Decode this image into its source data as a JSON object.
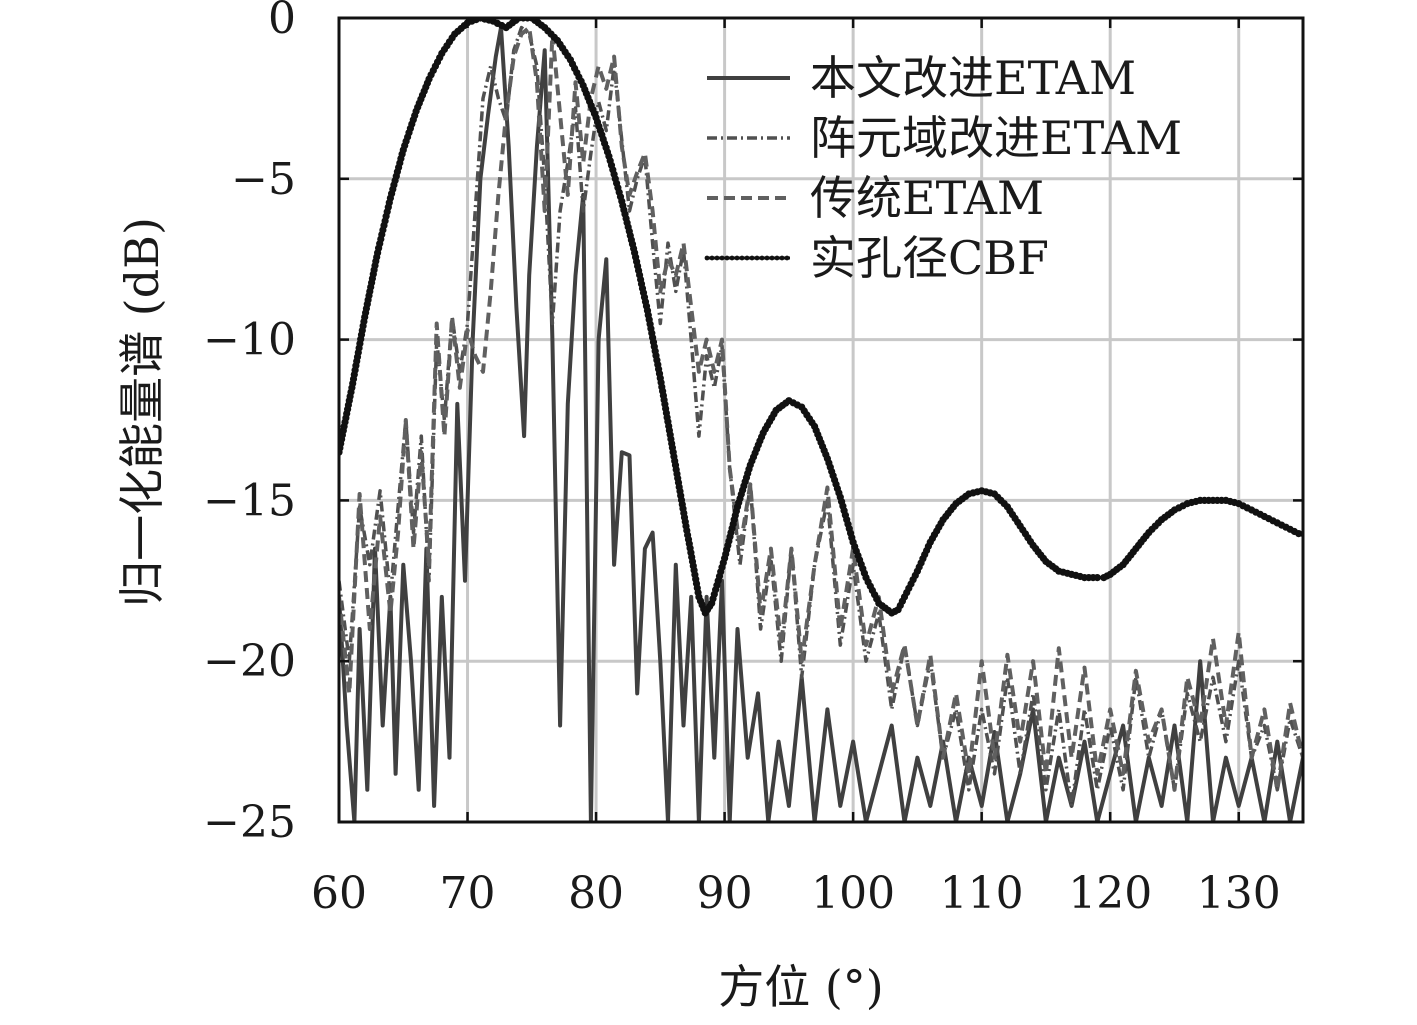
{
  "chart_data": {
    "type": "line",
    "title": "",
    "xlabel": "方位 (°)",
    "ylabel": "归一化能量谱 (dB)",
    "xlim": [
      60,
      135
    ],
    "ylim": [
      -25,
      0
    ],
    "xticks": [
      60,
      70,
      80,
      90,
      100,
      110,
      120,
      130
    ],
    "yticks": [
      0,
      -5,
      -10,
      -15,
      -20,
      -25
    ],
    "xtick_labels": [
      "60",
      "70",
      "80",
      "90",
      "100",
      "110",
      "120",
      "130"
    ],
    "ytick_labels": [
      "0",
      "−5",
      "−10",
      "−15",
      "−20",
      "−25"
    ],
    "grid": true,
    "legend_position": "top-right",
    "series": [
      {
        "name": "本文改进ETAM",
        "style": "solid",
        "color": "#404040",
        "x": [
          60,
          60.6,
          61.2,
          61.6,
          62.2,
          62.8,
          63.4,
          64,
          64.4,
          65,
          65.6,
          66.2,
          66.8,
          67.4,
          68,
          68.6,
          69.2,
          69.8,
          70.4,
          71,
          71.6,
          72.2,
          72.6,
          73.2,
          73.8,
          74.4,
          74.8,
          75.4,
          76,
          76.6,
          77.2,
          77.8,
          78.4,
          79,
          79.6,
          80.2,
          80.8,
          81.4,
          82,
          82.6,
          83.2,
          83.8,
          84.4,
          85,
          85.6,
          86.2,
          86.8,
          87.4,
          88,
          88.6,
          89.2,
          89.8,
          90.4,
          91,
          91.8,
          92.6,
          93.4,
          94.2,
          95,
          96,
          97,
          98,
          99,
          100,
          101,
          102,
          103,
          104,
          105,
          106,
          107,
          108,
          109,
          110,
          111,
          112,
          113,
          114,
          115,
          116,
          117,
          118,
          119,
          120,
          121,
          122,
          123,
          124,
          125,
          126,
          127,
          128,
          129,
          130,
          131,
          132,
          133,
          134,
          135
        ],
        "values": [
          -18,
          -22,
          -25,
          -19,
          -24,
          -16.5,
          -22,
          -18,
          -23.5,
          -17,
          -20,
          -24,
          -16.5,
          -24.5,
          -18,
          -23,
          -12,
          -17.5,
          -10,
          -5,
          -3,
          -1.2,
          -0.3,
          -4,
          -9,
          -13,
          -8,
          -4,
          -1,
          -10,
          -22,
          -12,
          -8,
          -5.5,
          -25,
          -10,
          -7.5,
          -17,
          -13.5,
          -13.6,
          -21,
          -16.5,
          -16,
          -20,
          -25,
          -17,
          -22,
          -18,
          -25,
          -18,
          -23,
          -17.5,
          -25,
          -19,
          -23,
          -21,
          -25,
          -22.5,
          -24.5,
          -20.5,
          -25,
          -21.5,
          -24.5,
          -22.5,
          -25,
          -23.5,
          -22,
          -25,
          -23,
          -24.5,
          -22.5,
          -25,
          -23,
          -24.5,
          -22.2,
          -25,
          -23.5,
          -21.5,
          -25,
          -23,
          -24.5,
          -22.5,
          -25,
          -23.5,
          -22,
          -25,
          -23,
          -24.5,
          -22,
          -25,
          -20,
          -25,
          -23,
          -24.5,
          -23,
          -25,
          -22.5,
          -25,
          -23
        ]
      },
      {
        "name": "阵元域改进ETAM",
        "style": "dash-dot",
        "color": "#505050",
        "x": [
          60,
          60.8,
          61.6,
          62.4,
          63.2,
          64,
          64.6,
          65.2,
          65.8,
          66.4,
          67,
          67.6,
          68.2,
          68.8,
          69.4,
          70,
          70.6,
          71.2,
          71.8,
          72.4,
          73,
          73.6,
          74.2,
          74.8,
          75.4,
          76,
          76.6,
          77.2,
          77.8,
          78.4,
          79,
          79.6,
          80.2,
          80.8,
          81.4,
          82,
          82.6,
          83.2,
          83.8,
          84.4,
          85,
          85.6,
          86.2,
          86.8,
          87.4,
          88,
          88.6,
          89.2,
          89.8,
          90.4,
          91.2,
          92,
          92.8,
          93.6,
          94.4,
          95.2,
          96,
          97,
          98,
          99,
          100,
          101,
          102,
          103,
          104,
          105,
          106,
          107,
          108,
          109,
          110,
          111,
          112,
          113,
          114,
          115,
          116,
          117,
          118,
          119,
          120,
          121,
          122,
          123,
          124,
          125,
          126,
          127,
          128,
          129,
          130,
          131,
          132,
          133,
          134,
          135
        ],
        "values": [
          -17.5,
          -20,
          -15.2,
          -17,
          -14.7,
          -18,
          -15.2,
          -12.5,
          -16,
          -13,
          -17.5,
          -10,
          -12.5,
          -9.3,
          -11,
          -9.5,
          -6,
          -2.5,
          -1.5,
          -2.5,
          -3.2,
          -1,
          -0.3,
          -0.5,
          -1.5,
          -5,
          -9.5,
          -6,
          -4.5,
          -2.8,
          -6,
          -4.2,
          -2.6,
          -3.5,
          -1.5,
          -3.8,
          -6,
          -5,
          -4.3,
          -7,
          -9.5,
          -7,
          -8.5,
          -7.2,
          -10,
          -13,
          -10.5,
          -11.5,
          -10.2,
          -14,
          -17,
          -14.5,
          -19,
          -16.8,
          -20,
          -16.5,
          -20.5,
          -17,
          -15,
          -19.5,
          -17,
          -20,
          -18.5,
          -21.5,
          -19.5,
          -22,
          -20,
          -23,
          -21.5,
          -24,
          -21.5,
          -23.5,
          -20.5,
          -23.5,
          -21,
          -24,
          -21.5,
          -24.5,
          -21.5,
          -24,
          -22,
          -24,
          -20.5,
          -23,
          -21.5,
          -24,
          -21,
          -22.5,
          -20.5,
          -22.5,
          -20,
          -23,
          -22,
          -24,
          -21.8,
          -23
        ]
      },
      {
        "name": "传统ETAM",
        "style": "dashed",
        "color": "#606060",
        "x": [
          60,
          60.8,
          61.6,
          62.4,
          63.2,
          64,
          64.6,
          65.2,
          65.8,
          66.4,
          67,
          67.6,
          68.2,
          68.8,
          69.4,
          70,
          70.6,
          71.2,
          71.8,
          72.4,
          73,
          73.6,
          74.2,
          74.8,
          75.4,
          76,
          76.6,
          77.2,
          77.8,
          78.4,
          79,
          79.6,
          80.2,
          80.8,
          81.4,
          82,
          82.6,
          83.2,
          83.8,
          84.4,
          85,
          85.6,
          86.2,
          86.8,
          87.4,
          88,
          88.6,
          89.2,
          89.8,
          90.4,
          91.2,
          92,
          92.8,
          93.6,
          94.4,
          95.2,
          96,
          97,
          98,
          99,
          100,
          101,
          102,
          103,
          104,
          105,
          106,
          107,
          108,
          109,
          110,
          111,
          112,
          113,
          114,
          115,
          116,
          117,
          118,
          119,
          120,
          121,
          122,
          123,
          124,
          125,
          126,
          127,
          128,
          129,
          130,
          131,
          132,
          133,
          134,
          135
        ],
        "values": [
          -18,
          -21,
          -14.8,
          -19,
          -15.5,
          -18.5,
          -16,
          -12.5,
          -16.5,
          -13.5,
          -17,
          -9.5,
          -13,
          -9.3,
          -11.5,
          -9.7,
          -10.5,
          -11,
          -8.5,
          -5.5,
          -3,
          -1.2,
          -0.5,
          -0.3,
          -2,
          -6,
          -0.5,
          -3,
          -5.5,
          -2,
          -4.5,
          -2.5,
          -1.5,
          -2.2,
          -1.2,
          -4,
          -5.5,
          -4.8,
          -4.2,
          -6,
          -8.5,
          -7.5,
          -8,
          -7,
          -9,
          -11,
          -10,
          -11,
          -10,
          -14,
          -16.5,
          -14.5,
          -18.5,
          -16.5,
          -19.5,
          -16.5,
          -20,
          -17,
          -14.6,
          -19,
          -16.5,
          -19.5,
          -18,
          -21,
          -19.5,
          -22,
          -19.8,
          -23,
          -21,
          -23.5,
          -20,
          -23,
          -19.8,
          -22.5,
          -20,
          -23.5,
          -19.6,
          -23,
          -20.2,
          -23.5,
          -21.5,
          -23.5,
          -20.3,
          -22.5,
          -21.5,
          -24,
          -20.5,
          -22,
          -19.3,
          -22,
          -19.1,
          -23,
          -21.5,
          -24,
          -21.3,
          -23
        ]
      },
      {
        "name": "实孔径CBF",
        "style": "dotted-marker",
        "color": "#111111",
        "x": [
          60,
          61,
          62,
          63,
          64,
          65,
          66,
          67,
          68,
          69,
          70,
          71,
          72,
          73,
          74,
          75,
          76,
          77,
          78,
          79,
          80,
          81,
          82,
          83,
          84,
          85,
          86,
          87,
          88,
          88.5,
          89,
          90,
          91,
          92,
          93,
          94,
          95,
          96,
          97,
          98,
          99,
          100,
          101,
          102,
          103,
          103.5,
          104,
          105,
          106,
          107,
          108,
          109,
          110,
          111,
          112,
          113,
          114,
          115,
          116,
          117,
          118,
          119,
          119.5,
          120,
          121,
          122,
          123,
          124,
          125,
          126,
          127,
          128,
          129,
          130,
          131,
          132,
          133,
          134,
          135
        ],
        "values": [
          -13.5,
          -11.5,
          -9.3,
          -7.3,
          -5.6,
          -4.1,
          -2.9,
          -1.9,
          -1.1,
          -0.5,
          -0.15,
          0,
          -0.1,
          -0.3,
          0,
          0,
          -0.3,
          -0.7,
          -1.3,
          -2.1,
          -3.1,
          -4.3,
          -5.7,
          -7.3,
          -9.1,
          -11.2,
          -13.5,
          -15.8,
          -18,
          -18.5,
          -18.2,
          -16.8,
          -15.2,
          -13.9,
          -12.9,
          -12.2,
          -11.9,
          -12.1,
          -12.7,
          -13.7,
          -14.9,
          -16.3,
          -17.4,
          -18.2,
          -18.5,
          -18.4,
          -18,
          -17.2,
          -16.3,
          -15.6,
          -15.1,
          -14.8,
          -14.7,
          -14.8,
          -15.2,
          -15.8,
          -16.4,
          -16.9,
          -17.2,
          -17.3,
          -17.4,
          -17.4,
          -17.4,
          -17.3,
          -17,
          -16.5,
          -16,
          -15.6,
          -15.3,
          -15.1,
          -15,
          -15,
          -15,
          -15.1,
          -15.3,
          -15.5,
          -15.7,
          -15.9,
          -16.1
        ]
      }
    ]
  }
}
